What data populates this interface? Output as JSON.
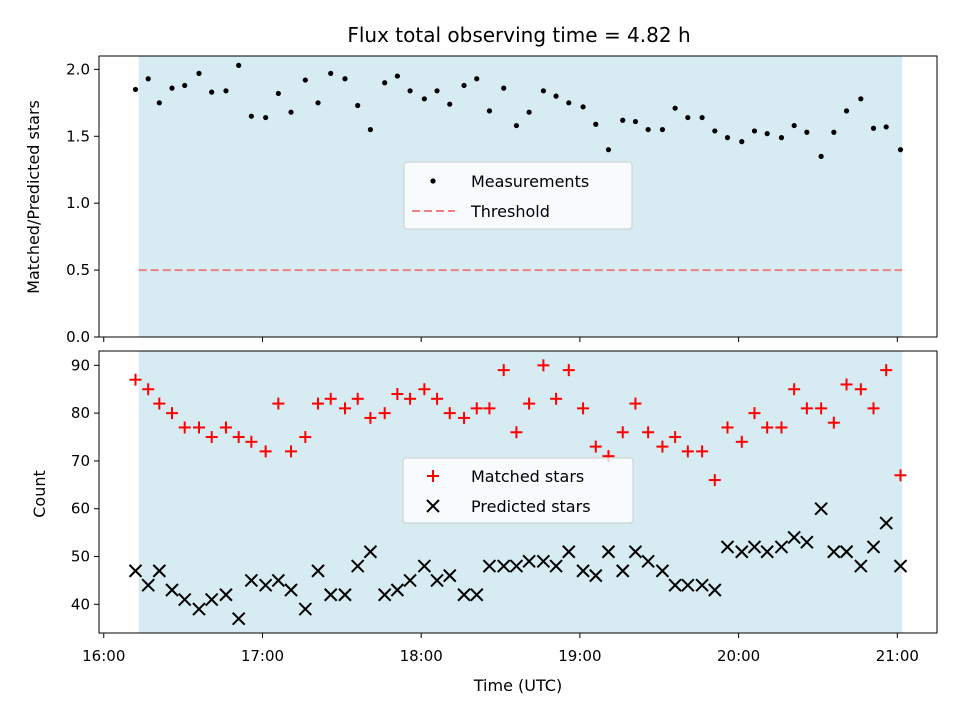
{
  "chart_data": [
    {
      "type": "scatter",
      "title": "Flux total observing time = 4.82 h",
      "xlabel": "",
      "ylabel": "Matched/Predicted stars",
      "ylim": [
        0,
        2.1
      ],
      "yticks": [
        "0.0",
        "0.5",
        "1.0",
        "1.5",
        "2.0"
      ],
      "ytick_values": [
        0,
        0.5,
        1.0,
        1.5,
        2.0
      ],
      "observing_window_hours": [
        16.22,
        21.03
      ],
      "threshold": 0.5,
      "colors": {
        "window": "#add8e6",
        "points": "#000000",
        "threshold": "#f08080"
      },
      "legend": {
        "position": "center",
        "entries": [
          "Measurements",
          "Threshold"
        ]
      },
      "series": [
        {
          "name": "Measurements",
          "x": [
            16.2,
            16.28,
            16.35,
            16.43,
            16.51,
            16.6,
            16.68,
            16.77,
            16.85,
            16.93,
            17.02,
            17.1,
            17.18,
            17.27,
            17.35,
            17.43,
            17.52,
            17.6,
            17.68,
            17.77,
            17.85,
            17.93,
            18.02,
            18.1,
            18.18,
            18.27,
            18.35,
            18.43,
            18.52,
            18.6,
            18.68,
            18.77,
            18.85,
            18.93,
            19.02,
            19.1,
            19.18,
            19.27,
            19.35,
            19.43,
            19.52,
            19.6,
            19.68,
            19.77,
            19.85,
            19.93,
            20.02,
            20.1,
            20.18,
            20.27,
            20.35,
            20.43,
            20.52,
            20.6,
            20.68,
            20.77,
            20.85,
            20.93,
            21.02
          ],
          "y": [
            1.85,
            1.93,
            1.75,
            1.86,
            1.88,
            1.97,
            1.83,
            1.84,
            2.03,
            1.65,
            1.64,
            1.82,
            1.68,
            1.92,
            1.75,
            1.97,
            1.93,
            1.73,
            1.55,
            1.9,
            1.95,
            1.84,
            1.78,
            1.84,
            1.74,
            1.88,
            1.93,
            1.69,
            1.86,
            1.58,
            1.68,
            1.84,
            1.8,
            1.75,
            1.72,
            1.59,
            1.4,
            1.62,
            1.61,
            1.55,
            1.55,
            1.71,
            1.64,
            1.64,
            1.54,
            1.49,
            1.46,
            1.54,
            1.52,
            1.49,
            1.58,
            1.53,
            1.35,
            1.53,
            1.69,
            1.78,
            1.56,
            1.57,
            1.4
          ]
        },
        {
          "name": "Threshold",
          "x": [
            16.22,
            21.03
          ],
          "y": [
            0.5,
            0.5
          ]
        }
      ]
    },
    {
      "type": "scatter",
      "title": "",
      "xlabel": "Time (UTC)",
      "ylabel": "Count",
      "ylim": [
        34,
        93
      ],
      "yticks": [
        "40",
        "50",
        "60",
        "70",
        "80",
        "90"
      ],
      "ytick_values": [
        40,
        50,
        60,
        70,
        80,
        90
      ],
      "xlim": [
        15.97,
        21.25
      ],
      "xticks": [
        "16:00",
        "17:00",
        "18:00",
        "19:00",
        "20:00",
        "21:00"
      ],
      "xtick_values": [
        16,
        17,
        18,
        19,
        20,
        21
      ],
      "observing_window_hours": [
        16.22,
        21.03
      ],
      "colors": {
        "window": "#add8e6",
        "matched": "#ff0000",
        "predicted": "#000000"
      },
      "legend": {
        "position": "center",
        "entries": [
          "Matched stars",
          "Predicted stars"
        ]
      },
      "series": [
        {
          "name": "Matched stars",
          "x": [
            16.2,
            16.28,
            16.35,
            16.43,
            16.51,
            16.6,
            16.68,
            16.77,
            16.85,
            16.93,
            17.02,
            17.1,
            17.18,
            17.27,
            17.35,
            17.43,
            17.52,
            17.6,
            17.68,
            17.77,
            17.85,
            17.93,
            18.02,
            18.1,
            18.18,
            18.27,
            18.35,
            18.43,
            18.52,
            18.6,
            18.68,
            18.77,
            18.85,
            18.93,
            19.02,
            19.1,
            19.18,
            19.27,
            19.35,
            19.43,
            19.52,
            19.6,
            19.68,
            19.77,
            19.85,
            19.93,
            20.02,
            20.1,
            20.18,
            20.27,
            20.35,
            20.43,
            20.52,
            20.6,
            20.68,
            20.77,
            20.85,
            20.93,
            21.02
          ],
          "y": [
            87,
            85,
            82,
            80,
            77,
            77,
            75,
            77,
            75,
            74,
            72,
            82,
            72,
            75,
            82,
            83,
            81,
            83,
            79,
            80,
            84,
            83,
            85,
            83,
            80,
            79,
            81,
            81,
            89,
            76,
            82,
            90,
            83,
            89,
            81,
            73,
            71,
            76,
            82,
            76,
            73,
            75,
            72,
            72,
            66,
            77,
            74,
            80,
            77,
            77,
            85,
            81,
            81,
            78,
            86,
            85,
            81,
            89,
            67
          ]
        },
        {
          "name": "Predicted stars",
          "x": [
            16.2,
            16.28,
            16.35,
            16.43,
            16.51,
            16.6,
            16.68,
            16.77,
            16.85,
            16.93,
            17.02,
            17.1,
            17.18,
            17.27,
            17.35,
            17.43,
            17.52,
            17.6,
            17.68,
            17.77,
            17.85,
            17.93,
            18.02,
            18.1,
            18.18,
            18.27,
            18.35,
            18.43,
            18.52,
            18.6,
            18.68,
            18.77,
            18.85,
            18.93,
            19.02,
            19.1,
            19.18,
            19.27,
            19.35,
            19.43,
            19.52,
            19.6,
            19.68,
            19.77,
            19.85,
            19.93,
            20.02,
            20.1,
            20.18,
            20.27,
            20.35,
            20.43,
            20.52,
            20.6,
            20.68,
            20.77,
            20.85,
            20.93,
            21.02
          ],
          "y": [
            47,
            44,
            47,
            43,
            41,
            39,
            41,
            42,
            37,
            45,
            44,
            45,
            43,
            39,
            47,
            42,
            42,
            48,
            51,
            42,
            43,
            45,
            48,
            45,
            46,
            42,
            42,
            48,
            48,
            48,
            49,
            49,
            48,
            51,
            47,
            46,
            51,
            47,
            51,
            49,
            47,
            44,
            44,
            44,
            43,
            52,
            51,
            52,
            51,
            52,
            54,
            53,
            60,
            51,
            51,
            48,
            52,
            57,
            48
          ]
        }
      ]
    }
  ]
}
